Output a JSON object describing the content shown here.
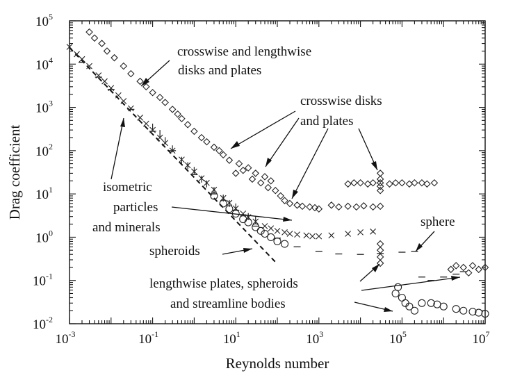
{
  "chart_data": {
    "type": "scatter",
    "title": "",
    "xlabel": "Reynolds number",
    "ylabel": "Drag coefficient",
    "x_scale": "log",
    "y_scale": "log",
    "xlim": [
      0.001,
      10000000
    ],
    "ylim": [
      0.01,
      100000
    ],
    "grid": false,
    "x_ticks": [
      {
        "base": "10",
        "exp": "-3",
        "value": 0.001
      },
      {
        "base": "10",
        "exp": "-1",
        "value": 0.1
      },
      {
        "base": "10",
        "exp": "1",
        "value": 10
      },
      {
        "base": "10",
        "exp": "3",
        "value": 1000
      },
      {
        "base": "10",
        "exp": "5",
        "value": 100000
      },
      {
        "base": "10",
        "exp": "7",
        "value": 10000000
      }
    ],
    "y_ticks": [
      {
        "base": "10",
        "exp": "-2",
        "value": 0.01
      },
      {
        "base": "10",
        "exp": "-1",
        "value": 0.1
      },
      {
        "base": "10",
        "exp": "0",
        "value": 1
      },
      {
        "base": "10",
        "exp": "1",
        "value": 10
      },
      {
        "base": "10",
        "exp": "2",
        "value": 100
      },
      {
        "base": "10",
        "exp": "3",
        "value": 1000
      },
      {
        "base": "10",
        "exp": "4",
        "value": 10000
      },
      {
        "base": "10",
        "exp": "5",
        "value": 100000
      }
    ],
    "annotations": [
      {
        "text": "crosswise and lengthwise"
      },
      {
        "text": "disks and plates"
      },
      {
        "text": "crosswise disks"
      },
      {
        "text": "and plates"
      },
      {
        "text": "isometric"
      },
      {
        "text": "particles"
      },
      {
        "text": "and minerals"
      },
      {
        "text": "sphere"
      },
      {
        "text": "spheroids"
      },
      {
        "text": "lengthwise plates, spheroids"
      },
      {
        "text": "and streamline bodies"
      }
    ],
    "stokes_line": {
      "x": [
        0.001,
        100
      ],
      "y": [
        24000,
        0.24
      ],
      "style": "dashed"
    },
    "series": [
      {
        "marker": "diamond",
        "x": [
          0.003,
          0.004,
          0.006,
          0.008,
          0.012,
          0.02,
          0.03,
          0.05,
          0.07,
          0.1,
          0.15,
          0.2,
          0.3,
          0.4,
          0.5,
          0.7,
          1,
          1.5,
          2,
          3,
          4,
          5,
          7,
          10,
          12,
          15,
          20,
          25,
          30,
          40,
          50,
          60,
          70,
          90,
          120,
          150,
          200,
          300,
          400,
          600,
          800,
          1000
        ],
        "y": [
          55000,
          40000,
          30000,
          20000,
          14000,
          9000,
          6000,
          4000,
          3000,
          2200,
          1700,
          1300,
          900,
          700,
          550,
          400,
          280,
          200,
          160,
          120,
          100,
          80,
          60,
          30,
          50,
          35,
          40,
          22,
          30,
          18,
          25,
          14,
          20,
          12,
          9,
          7,
          6,
          5.5,
          5.2,
          5,
          4.8,
          4.5
        ]
      },
      {
        "marker": "diamond",
        "x": [
          5000,
          7000,
          10000,
          15000,
          20000,
          30000,
          50000,
          70000,
          100000,
          150000,
          200000,
          300000,
          400000,
          600000
        ],
        "y": [
          17,
          18,
          18,
          17,
          18,
          18,
          17,
          18,
          18,
          17,
          18,
          18,
          17,
          18
        ]
      },
      {
        "marker": "diamond",
        "x": [
          2000,
          3000,
          5000,
          8000,
          12000,
          20000,
          30000
        ],
        "y": [
          5.5,
          5,
          5.2,
          5,
          5.3,
          5,
          5.2
        ]
      },
      {
        "marker": "diamond",
        "x": [
          30000,
          30000,
          30000,
          30000,
          30000,
          30000,
          30000,
          30000
        ],
        "y": [
          30,
          22,
          15,
          12,
          0.7,
          0.5,
          0.35,
          0.25
        ]
      },
      {
        "marker": "diamond",
        "x": [
          1500000,
          2000000,
          3000000,
          4000000,
          5000000,
          7000000,
          10000000
        ],
        "y": [
          0.18,
          0.22,
          0.2,
          0.15,
          0.22,
          0.18,
          0.2
        ]
      },
      {
        "marker": "x",
        "x": [
          0.001,
          0.0015,
          0.002,
          0.003,
          0.005,
          0.007,
          0.01,
          0.015,
          0.02,
          0.03,
          0.05,
          0.07,
          0.1,
          0.15,
          0.2,
          0.3,
          0.5,
          0.7,
          1,
          1.5,
          2,
          3,
          5,
          7,
          10,
          15,
          20,
          30,
          50,
          70,
          100,
          150,
          200,
          300,
          500,
          700,
          1000,
          2000,
          5000,
          10000,
          20000
        ],
        "y": [
          25000,
          17000,
          13000,
          9000,
          5500,
          4000,
          2800,
          1900,
          1400,
          950,
          580,
          420,
          300,
          200,
          150,
          100,
          62,
          46,
          33,
          23,
          18,
          12.5,
          8,
          6.2,
          4.6,
          3.5,
          2.9,
          2.3,
          1.8,
          1.6,
          1.4,
          1.3,
          1.2,
          1.15,
          1.1,
          1.05,
          1.05,
          1.1,
          1.2,
          1.3,
          1.35
        ]
      },
      {
        "marker": "circle",
        "x": [
          3,
          5,
          7,
          10,
          15,
          20,
          30,
          40,
          50,
          70,
          100,
          150
        ],
        "y": [
          9,
          6,
          4.5,
          3.5,
          2.6,
          2.2,
          1.7,
          1.4,
          1.2,
          1,
          0.8,
          0.7
        ]
      },
      {
        "marker": "circle",
        "x": [
          70000,
          80000,
          100000,
          120000,
          150000,
          200000,
          300000,
          500000,
          700000,
          1000000,
          2000000,
          3000000,
          5000000,
          7000000,
          10000000
        ],
        "y": [
          0.05,
          0.07,
          0.04,
          0.03,
          0.025,
          0.02,
          0.03,
          0.03,
          0.028,
          0.025,
          0.022,
          0.02,
          0.019,
          0.018,
          0.017
        ]
      },
      {
        "marker": "dash",
        "x": [
          0.002,
          0.005,
          0.01,
          0.03,
          0.1,
          0.3,
          1,
          3,
          10,
          30,
          100,
          300,
          1000,
          3000,
          10000,
          30000,
          100000,
          200000,
          300000,
          500000,
          1000000,
          2000000,
          3000000
        ],
        "y": [
          11000,
          5000,
          2600,
          900,
          280,
          100,
          28,
          10,
          4.2,
          1.8,
          0.95,
          0.6,
          0.47,
          0.41,
          0.4,
          0.42,
          0.45,
          0.47,
          0.12,
          0.1,
          0.12,
          0.14,
          0.16
        ]
      },
      {
        "marker": "vbar",
        "x": [
          0.1,
          0.15,
          0.2,
          0.3,
          0.5,
          0.7,
          1,
          1.5,
          2,
          3,
          5,
          7,
          10,
          20,
          30
        ],
        "y": [
          350,
          250,
          170,
          110,
          60,
          45,
          35,
          22,
          17,
          12,
          8,
          6,
          5,
          3,
          2.5
        ]
      }
    ]
  }
}
